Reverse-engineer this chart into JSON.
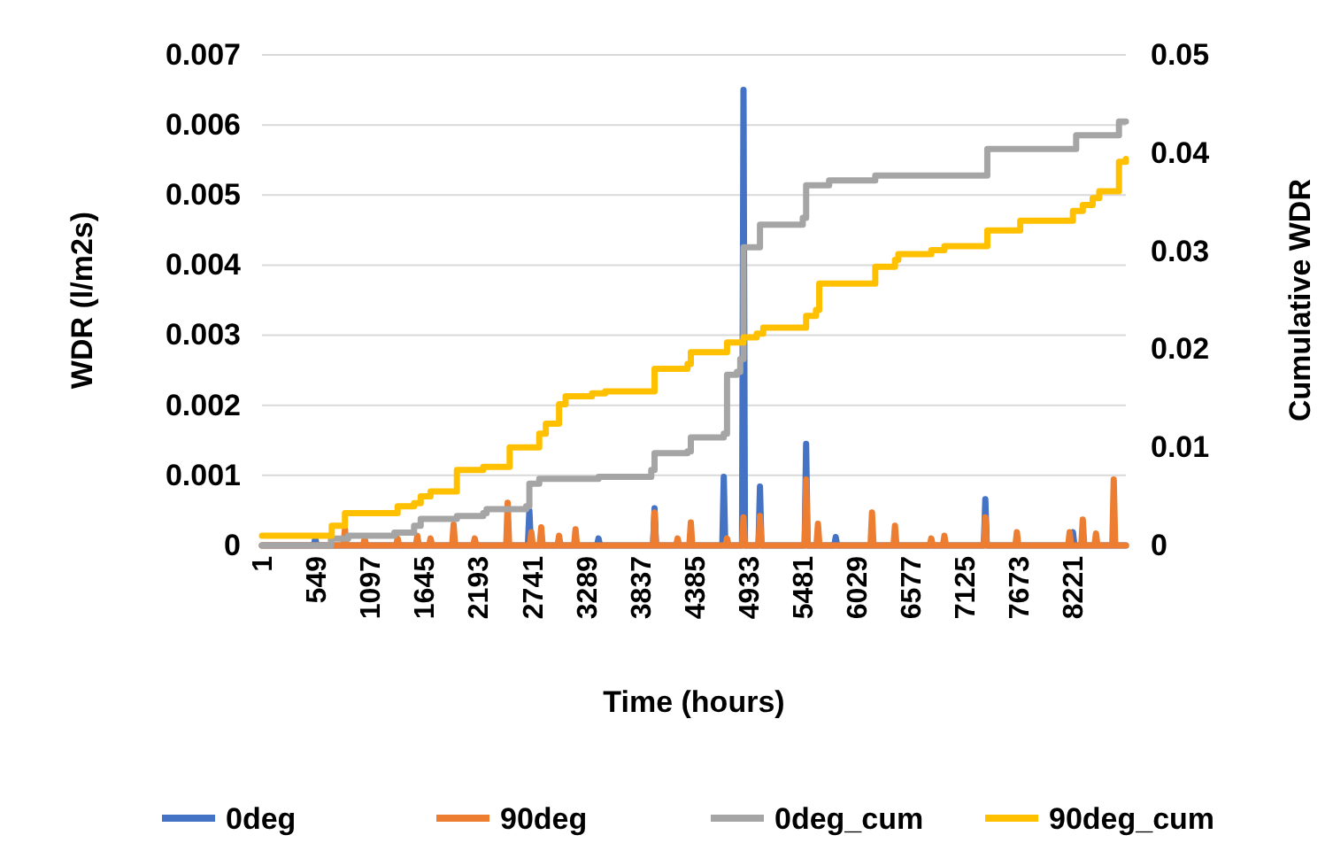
{
  "chart_data": {
    "type": "line",
    "xlabel": "Time (hours)",
    "ylabel": "WDR (l/m2s)",
    "y2label": "Cumulative WDR",
    "xlim": [
      1,
      8760
    ],
    "xticks": [
      1,
      549,
      1097,
      1645,
      2193,
      2741,
      3289,
      3837,
      4385,
      4933,
      5481,
      6029,
      6577,
      7125,
      7673,
      8221
    ],
    "ylim": [
      0,
      0.007
    ],
    "yticks": [
      0,
      0.001,
      0.002,
      0.003,
      0.004,
      0.005,
      0.006,
      0.007
    ],
    "y2lim": [
      0,
      0.05
    ],
    "y2ticks": [
      0,
      0.01,
      0.02,
      0.03,
      0.04,
      0.05
    ],
    "grid": "y",
    "legend": "bottom",
    "marker": "none",
    "line_style": "solid",
    "series": [
      {
        "name": "0deg",
        "color": "#4472c4",
        "x": [
          1,
          526,
          541,
          556,
          2697,
          2712,
          2727,
          3398,
          3413,
          3428,
          3966,
          3981,
          3996,
          4668,
          4683,
          4698,
          4868,
          4883,
          4898,
          5035,
          5050,
          5065,
          5503,
          5518,
          5533,
          5803,
          5818,
          5833,
          7320,
          7335,
          7350,
          8208,
          8223,
          8238,
          8760
        ],
        "values": [
          0,
          0,
          0.0001,
          0,
          0,
          0.0005,
          0,
          0,
          0.0001,
          0,
          0,
          0.00053,
          0,
          0,
          0.00098,
          0,
          0,
          0.0065,
          0,
          0,
          0.00084,
          0,
          0,
          0.00145,
          0,
          0,
          0.00012,
          0,
          0,
          0.00066,
          0,
          0,
          0.00019,
          0,
          0
        ]
      },
      {
        "name": "90deg",
        "color": "#ed7d31",
        "x": [
          1,
          827,
          842,
          857,
          1027,
          1042,
          1057,
          1361,
          1376,
          1391,
          1561,
          1576,
          1591,
          1695,
          1710,
          1725,
          1929,
          1944,
          1959,
          2143,
          2158,
          2173,
          2477,
          2492,
          2507,
          2717,
          2732,
          2747,
          2817,
          2832,
          2847,
          2998,
          3013,
          3028,
          3165,
          3180,
          3195,
          3966,
          3981,
          3996,
          4200,
          4215,
          4230,
          4334,
          4349,
          4364,
          4701,
          4716,
          4731,
          4868,
          4883,
          4898,
          5035,
          5050,
          5065,
          5503,
          5518,
          5533,
          5623,
          5638,
          5653,
          6171,
          6186,
          6201,
          6404,
          6419,
          6434,
          6772,
          6787,
          6802,
          6905,
          6920,
          6935,
          7320,
          7335,
          7350,
          7640,
          7655,
          7670,
          8175,
          8190,
          8205,
          8308,
          8323,
          8338,
          8442,
          8457,
          8472,
          8622,
          8637,
          8652,
          8760
        ],
        "values": [
          0,
          0,
          0.00023,
          0,
          0,
          0.0001,
          0,
          0,
          0.0001,
          0,
          0,
          0.00014,
          0,
          0,
          0.0001,
          0,
          0,
          0.0003,
          0,
          0,
          0.0001,
          0,
          0,
          0.00061,
          0,
          0,
          0.00019,
          0,
          0,
          0.00026,
          0,
          0,
          0.00014,
          0,
          0,
          0.00023,
          0,
          0,
          0.00047,
          0,
          0,
          0.0001,
          0,
          0,
          0.00033,
          0,
          0,
          0.0001,
          0,
          0,
          0.0004,
          0,
          0,
          0.00042,
          0,
          0,
          0.00094,
          0,
          0,
          0.00031,
          0,
          0,
          0.00047,
          0,
          0,
          0.00028,
          0,
          0,
          0.0001,
          0,
          0,
          0.00014,
          0,
          0,
          0.0004,
          0,
          0,
          0.00019,
          0,
          0,
          0.00019,
          0,
          0,
          0.00037,
          0,
          0,
          0.00017,
          0,
          0,
          0.00094,
          0,
          0
        ]
      },
      {
        "name": "0deg_cum",
        "type": "step",
        "axis": "y2",
        "color": "#a5a5a5",
        "x": [
          1,
          700,
          875,
          1343,
          1543,
          1610,
          1977,
          2244,
          2278,
          2679,
          2712,
          2812,
          3413,
          3948,
          3981,
          4315,
          4349,
          4683,
          4716,
          4816,
          4850,
          4883,
          5050,
          5484,
          5518,
          5751,
          6219,
          7355,
          8256,
          8690,
          8760
        ],
        "values": [
          0,
          0.0007,
          0.001,
          0.0013,
          0.002,
          0.0027,
          0.003,
          0.0033,
          0.0037,
          0.004,
          0.0063,
          0.0068,
          0.007,
          0.0077,
          0.0094,
          0.0096,
          0.011,
          0.0114,
          0.0174,
          0.0177,
          0.019,
          0.0304,
          0.0327,
          0.0334,
          0.0367,
          0.0372,
          0.0377,
          0.0404,
          0.0418,
          0.0432,
          0.0432
        ]
      },
      {
        "name": "90deg_cum",
        "type": "step",
        "axis": "y2",
        "color": "#ffc000",
        "x": [
          1,
          708,
          842,
          1376,
          1543,
          1610,
          1710,
          1977,
          2244,
          2512,
          2812,
          2879,
          3013,
          3079,
          3347,
          3480,
          3981,
          4315,
          4349,
          4716,
          4883,
          5017,
          5083,
          5518,
          5618,
          5651,
          6219,
          6419,
          6453,
          6787,
          6920,
          7355,
          7689,
          8223,
          8323,
          8423,
          8490,
          8690,
          8760
        ],
        "values": [
          0.001,
          0.002,
          0.0033,
          0.004,
          0.0043,
          0.005,
          0.0055,
          0.0077,
          0.008,
          0.01,
          0.0114,
          0.0124,
          0.0144,
          0.0152,
          0.0155,
          0.0157,
          0.018,
          0.0185,
          0.0197,
          0.0207,
          0.0212,
          0.0216,
          0.0222,
          0.0234,
          0.024,
          0.0267,
          0.0284,
          0.0291,
          0.0297,
          0.0301,
          0.0305,
          0.0321,
          0.0331,
          0.0341,
          0.0347,
          0.0354,
          0.0361,
          0.0391,
          0.0394
        ]
      }
    ]
  }
}
